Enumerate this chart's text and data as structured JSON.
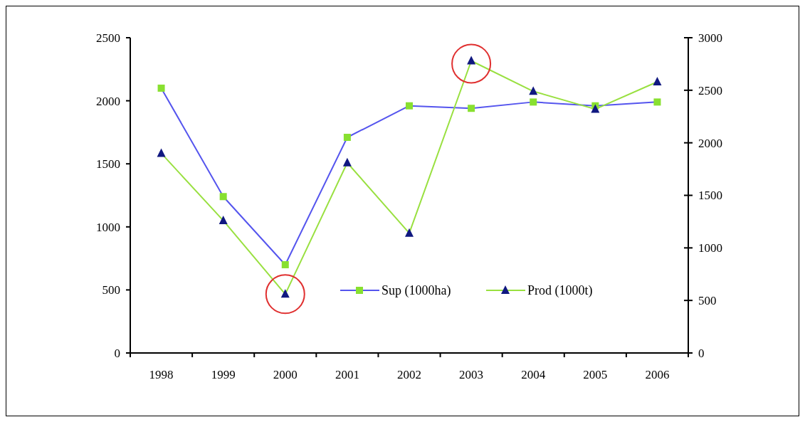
{
  "chart_data": {
    "type": "line",
    "categories": [
      "1998",
      "1999",
      "2000",
      "2001",
      "2002",
      "2003",
      "2004",
      "2005",
      "2006"
    ],
    "series": [
      {
        "name": "Sup (1000ha)",
        "color": "#5555ee",
        "colors": [
          "#88e030",
          "#88e030",
          "#88e030",
          "#88e030",
          "#88e030",
          "#88e030",
          "#88e030",
          "#88e030",
          "#88e030"
        ],
        "marker": "square",
        "values": [
          2100,
          1240,
          700,
          1710,
          1960,
          1940,
          1990,
          1960,
          1990
        ]
      },
      {
        "name": "Prod (1000t)",
        "color": "#99e040",
        "colors": [
          "#101880",
          "#101880",
          "#101880",
          "#101880",
          "#101880",
          "#101880",
          "#101880",
          "#101880",
          "#101880"
        ],
        "marker": "triangle",
        "axis": "y2",
        "values": [
          1900,
          1260,
          560,
          1810,
          1140,
          2780,
          2490,
          2320,
          2580
        ]
      }
    ],
    "ylim": [
      0,
      2500
    ],
    "yticks": [
      0,
      500,
      1000,
      1500,
      2000,
      2500
    ],
    "y2lim": [
      0,
      3000
    ],
    "y2ticks": [
      0,
      500,
      1000,
      1500,
      2000,
      2500,
      3000
    ],
    "grid": false,
    "legend": "right"
  }
}
